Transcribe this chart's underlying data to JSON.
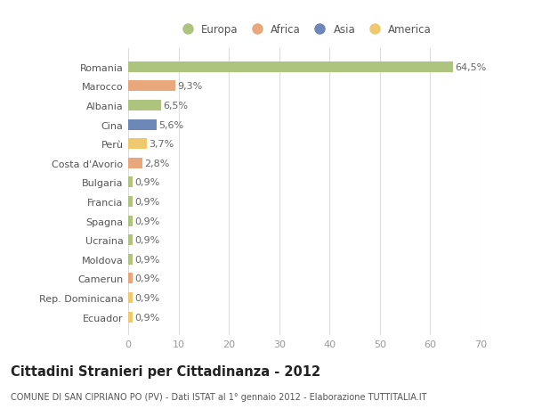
{
  "categories": [
    "Romania",
    "Marocco",
    "Albania",
    "Cina",
    "Perù",
    "Costa d'Avorio",
    "Bulgaria",
    "Francia",
    "Spagna",
    "Ucraina",
    "Moldova",
    "Camerun",
    "Rep. Dominicana",
    "Ecuador"
  ],
  "values": [
    64.5,
    9.3,
    6.5,
    5.6,
    3.7,
    2.8,
    0.9,
    0.9,
    0.9,
    0.9,
    0.9,
    0.9,
    0.9,
    0.9
  ],
  "labels": [
    "64,5%",
    "9,3%",
    "6,5%",
    "5,6%",
    "3,7%",
    "2,8%",
    "0,9%",
    "0,9%",
    "0,9%",
    "0,9%",
    "0,9%",
    "0,9%",
    "0,9%",
    "0,9%"
  ],
  "continents": [
    "Europa",
    "Africa",
    "Europa",
    "Asia",
    "America",
    "Africa",
    "Europa",
    "Europa",
    "Europa",
    "Europa",
    "Europa",
    "Africa",
    "America",
    "America"
  ],
  "continent_colors": {
    "Europa": "#adc47e",
    "Africa": "#e8a87c",
    "Asia": "#6d87b8",
    "America": "#f0c96e"
  },
  "legend_order": [
    "Europa",
    "Africa",
    "Asia",
    "America"
  ],
  "xlim": [
    0,
    70
  ],
  "xticks": [
    0,
    10,
    20,
    30,
    40,
    50,
    60,
    70
  ],
  "background_color": "#ffffff",
  "grid_color": "#dddddd",
  "bar_height": 0.55,
  "label_fontsize": 8,
  "tick_fontsize": 8,
  "title": "Cittadini Stranieri per Cittadinanza - 2012",
  "subtitle": "COMUNE DI SAN CIPRIANO PO (PV) - Dati ISTAT al 1° gennaio 2012 - Elaborazione TUTTITALIA.IT",
  "title_fontsize": 10.5,
  "subtitle_fontsize": 7
}
